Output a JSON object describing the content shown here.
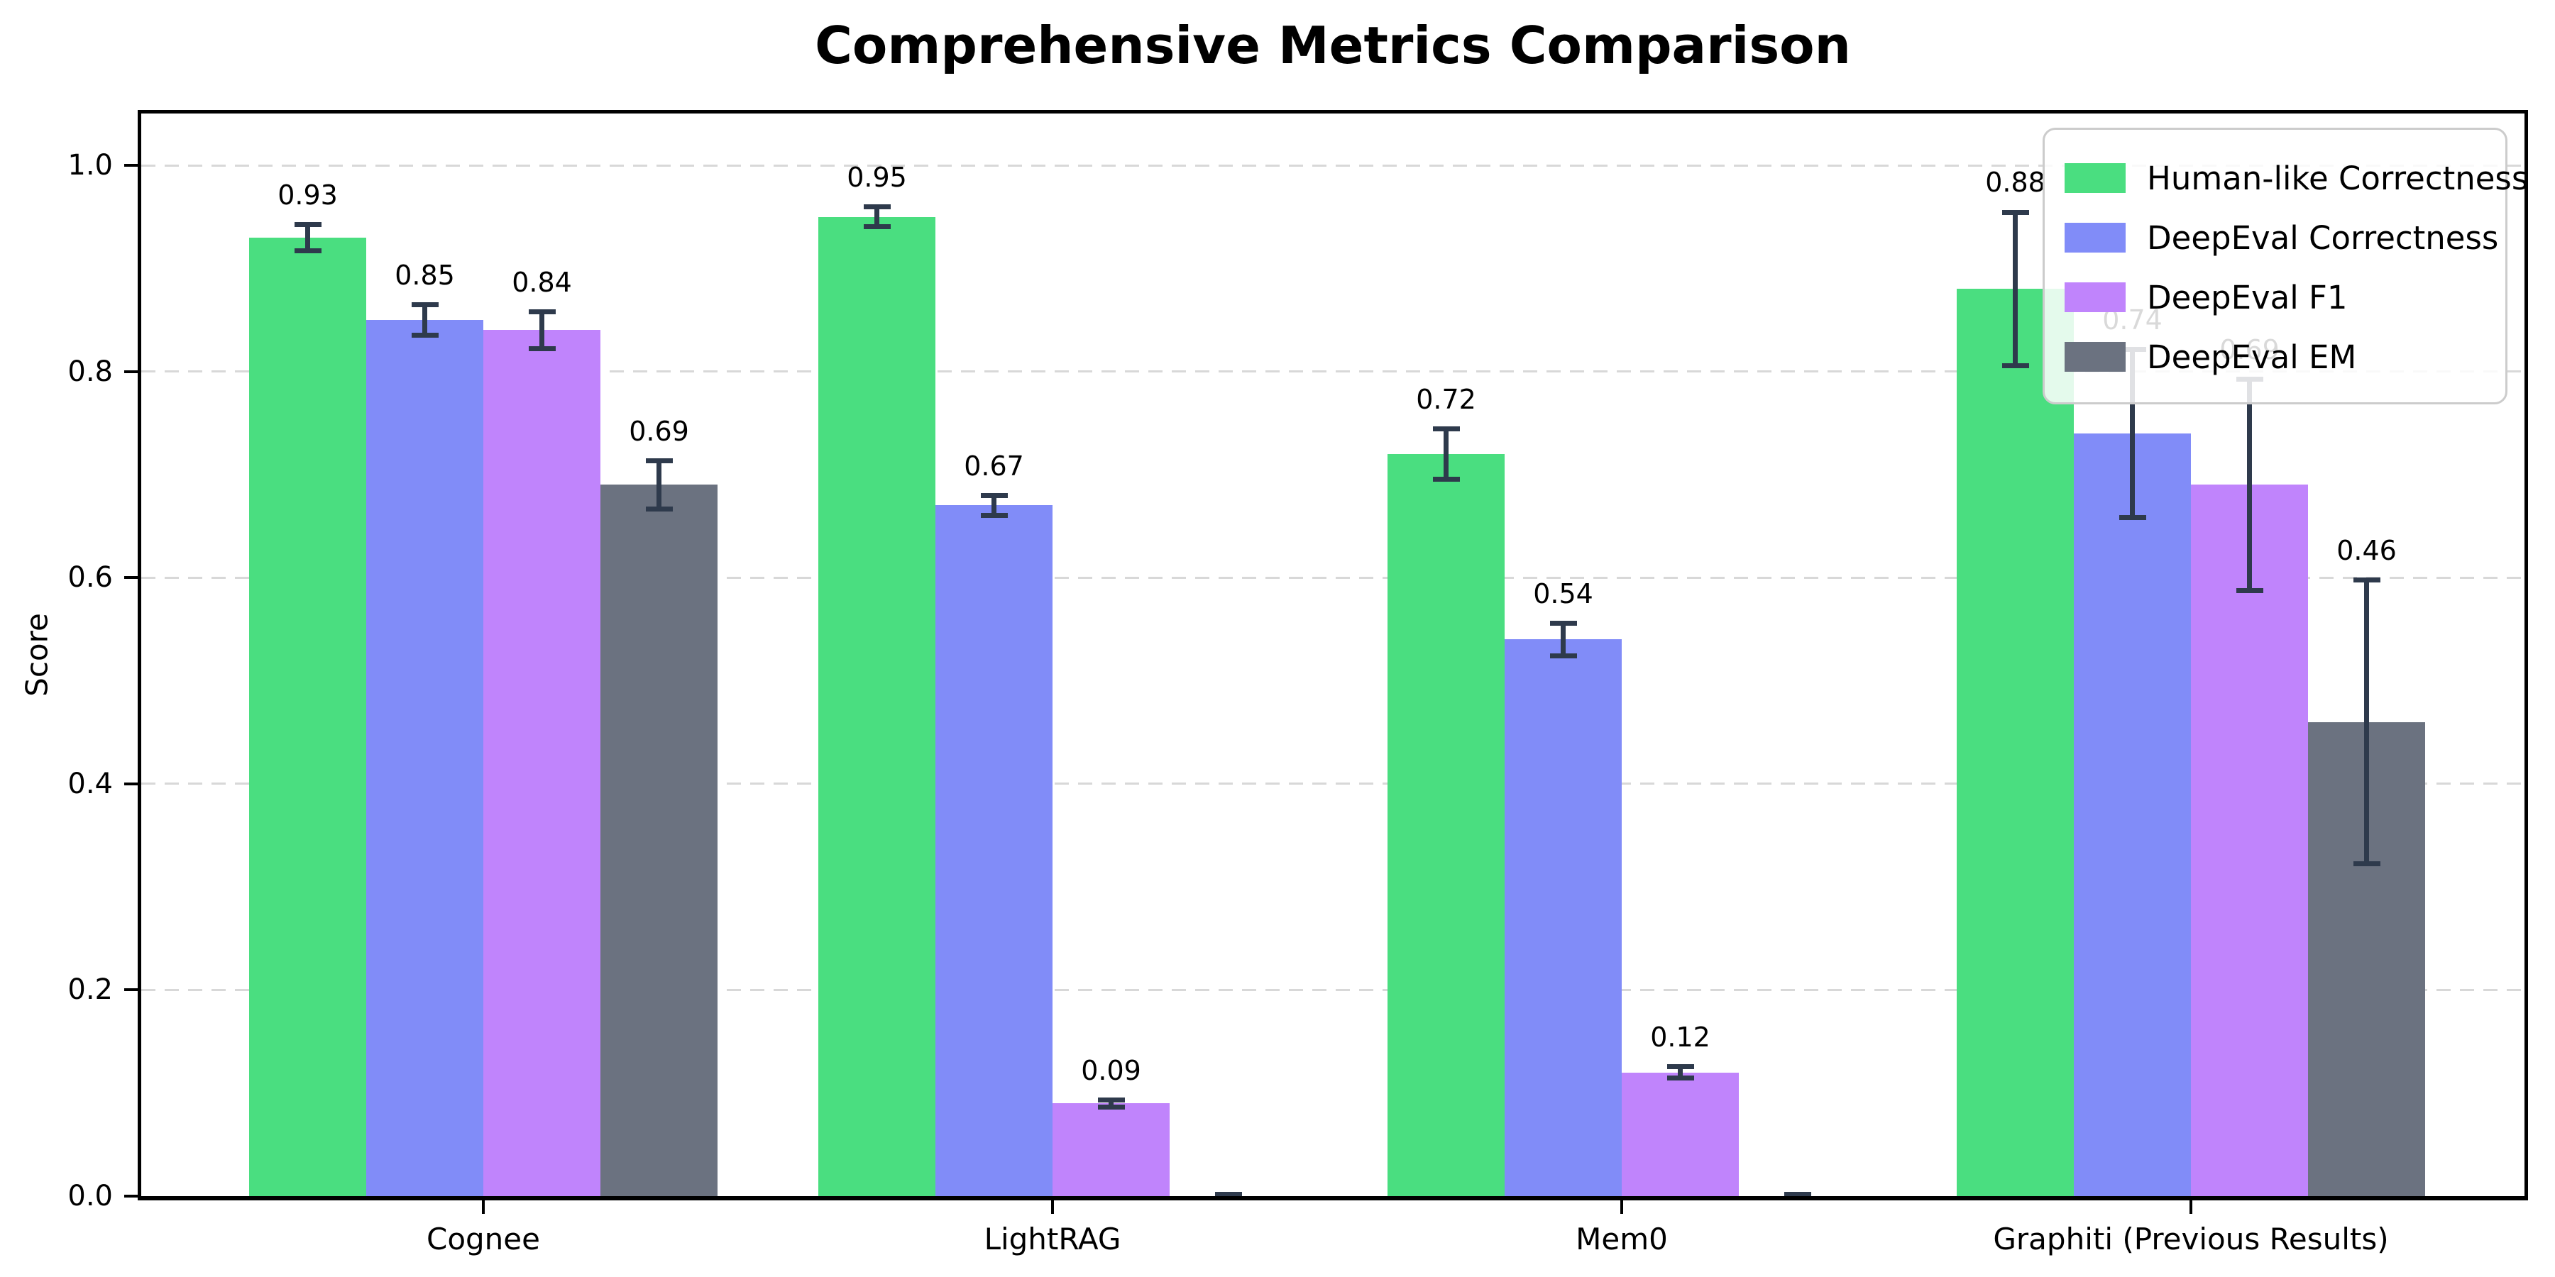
{
  "title": "Comprehensive Metrics Comparison",
  "chart_data": {
    "type": "bar",
    "title": "Comprehensive Metrics Comparison",
    "xlabel": "",
    "ylabel": "Score",
    "ylim": [
      0,
      1.05
    ],
    "yticks": [
      0.0,
      0.2,
      0.4,
      0.6,
      0.8,
      1.0
    ],
    "ytick_labels": [
      "0.0",
      "0.2",
      "0.4",
      "0.6",
      "0.8",
      "1.0"
    ],
    "grid": "horizontal-dashed",
    "grid_color": "#d8d8d8",
    "legend_position": "upper-right",
    "error_bar_color": "#2e3a4c",
    "categories": [
      "Cognee",
      "LightRAG",
      "Mem0",
      "Graphiti (Previous Results)"
    ],
    "series": [
      {
        "name": "Human-like Correctness",
        "color": "#4ade80",
        "values": [
          0.93,
          0.95,
          0.72,
          0.88
        ],
        "errors": [
          0.015,
          0.012,
          0.027,
          0.077
        ],
        "labels": [
          "0.93",
          "0.95",
          "0.72",
          "0.88"
        ]
      },
      {
        "name": "DeepEval Correctness",
        "color": "#818cf8",
        "values": [
          0.85,
          0.67,
          0.54,
          0.74
        ],
        "errors": [
          0.017,
          0.012,
          0.018,
          0.084
        ],
        "labels": [
          "0.85",
          "0.67",
          "0.54",
          "0.74"
        ]
      },
      {
        "name": "DeepEval F1",
        "color": "#c084fc",
        "values": [
          0.84,
          0.09,
          0.12,
          0.69
        ],
        "errors": [
          0.02,
          0.006,
          0.008,
          0.105
        ],
        "labels": [
          "0.84",
          "0.09",
          "0.12",
          "0.69"
        ]
      },
      {
        "name": "DeepEval EM",
        "color": "#6b7280",
        "values": [
          0.69,
          0.0,
          0.0,
          0.46
        ],
        "errors": [
          0.026,
          0.004,
          0.004,
          0.14
        ],
        "labels": [
          "0.69",
          null,
          null,
          "0.46"
        ]
      }
    ]
  }
}
